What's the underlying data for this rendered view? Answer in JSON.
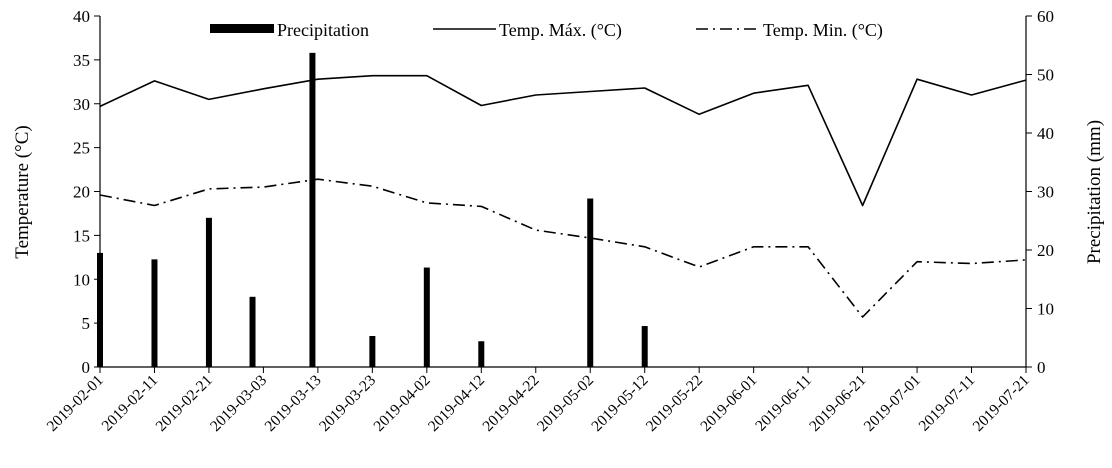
{
  "chart_data": {
    "type": "bar+line",
    "x_dates": [
      "2019-02-01",
      "2019-02-11",
      "2019-02-21",
      "2019-03-03",
      "2019-03-13",
      "2019-03-23",
      "2019-04-02",
      "2019-04-12",
      "2019-04-22",
      "2019-05-02",
      "2019-05-12",
      "2019-05-22",
      "2019-06-01",
      "2019-06-11",
      "2019-06-21",
      "2019-07-01",
      "2019-07-11",
      "2019-07-21"
    ],
    "x_tick_labels": [
      "2019-02-01",
      "2019-02-11",
      "2019-02-21",
      "2019-03-03",
      "2019-03-13",
      "2019-03-23",
      "2019-04-02",
      "2019-04-12",
      "2019-04-22",
      "2019-05-02",
      "2019-05-12",
      "2019-05-22",
      "2019-06-01",
      "2019-06-11",
      "2019-06-21",
      "2019-07-01",
      "2019-07-11",
      "2019-07-21"
    ],
    "left_axis": {
      "label": "Temperature (°C)",
      "range": [
        0,
        40
      ],
      "ticks": [
        0,
        5,
        10,
        15,
        20,
        25,
        30,
        35,
        40
      ]
    },
    "right_axis": {
      "label": "Precipitation (mm)",
      "range": [
        0,
        60
      ],
      "ticks": [
        0,
        10,
        20,
        30,
        40,
        50,
        60
      ]
    },
    "series": [
      {
        "name": "Precipitation",
        "type": "bar",
        "axis": "right",
        "style": "solid-black-bar",
        "x": [
          "2019-02-01",
          "2019-02-11",
          "2019-02-21",
          "2019-02-29",
          "2019-03-12",
          "2019-03-23",
          "2019-04-02",
          "2019-04-12",
          "2019-05-02",
          "2019-05-12"
        ],
        "values": [
          19.5,
          18.4,
          25.5,
          12.0,
          53.7,
          5.3,
          17.0,
          4.4,
          28.8,
          7.0
        ]
      },
      {
        "name": "Temp. Máx. (°C)",
        "type": "line",
        "axis": "left",
        "style": "solid",
        "x": [
          "2019-02-01",
          "2019-02-11",
          "2019-02-21",
          "2019-03-03",
          "2019-03-13",
          "2019-03-23",
          "2019-04-02",
          "2019-04-12",
          "2019-04-22",
          "2019-05-02",
          "2019-05-12",
          "2019-05-22",
          "2019-06-01",
          "2019-06-11",
          "2019-06-21",
          "2019-07-01",
          "2019-07-11",
          "2019-07-21"
        ],
        "values": [
          29.7,
          32.6,
          30.5,
          31.7,
          32.8,
          33.2,
          33.2,
          29.8,
          31.0,
          31.4,
          31.8,
          28.8,
          31.2,
          32.1,
          18.4,
          32.8,
          31.0,
          32.7
        ]
      },
      {
        "name": "Temp. Min. (°C)",
        "type": "line",
        "axis": "left",
        "style": "dash-dot",
        "x": [
          "2019-02-01",
          "2019-02-11",
          "2019-02-21",
          "2019-03-03",
          "2019-03-13",
          "2019-03-23",
          "2019-04-02",
          "2019-04-12",
          "2019-04-22",
          "2019-05-02",
          "2019-05-12",
          "2019-05-22",
          "2019-06-01",
          "2019-06-11",
          "2019-06-21",
          "2019-07-01",
          "2019-07-11",
          "2019-07-21"
        ],
        "values": [
          19.6,
          18.4,
          20.3,
          20.5,
          21.4,
          20.6,
          18.7,
          18.3,
          15.6,
          14.7,
          13.7,
          11.4,
          13.7,
          13.7,
          5.7,
          12.0,
          11.8,
          12.2
        ]
      }
    ],
    "legend": {
      "position": "top",
      "entries": [
        "Precipitation",
        "Temp. Máx. (°C)",
        "Temp. Min. (°C)"
      ]
    },
    "grid": false,
    "colors": {
      "ink": "#000000",
      "background": "#ffffff"
    }
  }
}
